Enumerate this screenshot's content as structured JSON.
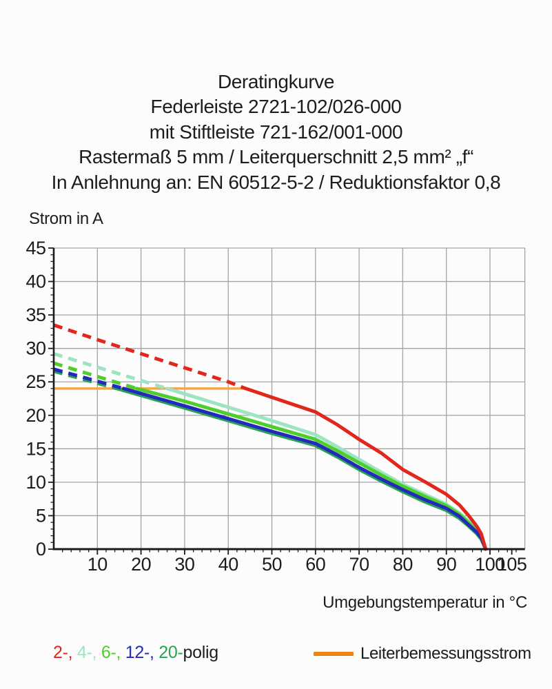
{
  "title": {
    "lines": [
      "Deratingkurve",
      "Federleiste 2721-102/026-000",
      "mit Stiftleiste 721-162/001-000",
      "Rastermaß 5 mm / Leiterquerschnitt 2,5 mm² „f“",
      "In Anlehnung an: EN 60512-5-2 / Reduktionsfaktor 0,8"
    ]
  },
  "chart_data": {
    "type": "line",
    "ylabel": "Strom in A",
    "xlabel": "Umgebungstemperatur in °C",
    "xlim": [
      0,
      108
    ],
    "ylim": [
      0,
      45
    ],
    "grid": "on",
    "x_major_ticks": [
      10,
      20,
      30,
      40,
      50,
      60,
      70,
      80,
      90,
      100,
      105
    ],
    "x_gridlines": [
      10,
      20,
      30,
      40,
      50,
      60,
      70,
      80,
      90,
      100
    ],
    "x_minor_step": 2,
    "y_major_ticks": [
      0,
      5,
      10,
      15,
      20,
      25,
      30,
      35,
      40,
      45
    ],
    "y_gridlines": [
      5,
      10,
      15,
      20,
      25,
      30,
      35,
      40,
      45
    ],
    "y_minor_step": 1,
    "grid_color": "#a3a3a3",
    "axis_color": "#1c1c1c",
    "line_style_note": "curves are dashed above the rated-current line (24 A) and solid below it",
    "rated_current_line": {
      "label": "Leiterbemessungsstrom",
      "value_a": 24,
      "temp_start": 0,
      "temp_end": 44,
      "color": "#f5a54a"
    },
    "series": [
      {
        "name": "2-polig",
        "poles": 2,
        "color": "#e1261d",
        "z": 5,
        "dash_until_temp": 44,
        "points": [
          [
            0,
            33.5
          ],
          [
            10,
            31.3
          ],
          [
            20,
            29.2
          ],
          [
            30,
            27.1
          ],
          [
            40,
            25.0
          ],
          [
            44,
            24.0
          ],
          [
            50,
            22.7
          ],
          [
            55,
            21.6
          ],
          [
            60,
            20.5
          ],
          [
            65,
            18.6
          ],
          [
            70,
            16.4
          ],
          [
            75,
            14.4
          ],
          [
            80,
            11.9
          ],
          [
            85,
            10.1
          ],
          [
            90,
            8.2
          ],
          [
            93,
            6.6
          ],
          [
            95,
            5.1
          ],
          [
            97,
            3.4
          ],
          [
            98,
            2.3
          ],
          [
            99,
            0
          ]
        ]
      },
      {
        "name": "4-polig",
        "poles": 4,
        "color": "#9de4c3",
        "z": 2,
        "dash_until_temp": 26,
        "points": [
          [
            0,
            29.2
          ],
          [
            10,
            27.2
          ],
          [
            20,
            25.2
          ],
          [
            26,
            24.0
          ],
          [
            30,
            23.2
          ],
          [
            40,
            21.2
          ],
          [
            50,
            19.2
          ],
          [
            60,
            17.1
          ],
          [
            65,
            15.3
          ],
          [
            70,
            13.4
          ],
          [
            75,
            11.5
          ],
          [
            80,
            9.7
          ],
          [
            85,
            8.2
          ],
          [
            90,
            6.7
          ],
          [
            93,
            5.4
          ],
          [
            95,
            4.2
          ],
          [
            97,
            2.8
          ],
          [
            98,
            1.9
          ],
          [
            99,
            0
          ]
        ]
      },
      {
        "name": "6-polig",
        "poles": 6,
        "color": "#4ecd2d",
        "z": 3,
        "dash_until_temp": 19,
        "points": [
          [
            0,
            27.8
          ],
          [
            10,
            25.8
          ],
          [
            19,
            24.0
          ],
          [
            30,
            22.1
          ],
          [
            40,
            20.2
          ],
          [
            50,
            18.3
          ],
          [
            60,
            16.4
          ],
          [
            65,
            14.7
          ],
          [
            70,
            12.9
          ],
          [
            75,
            11.1
          ],
          [
            80,
            9.4
          ],
          [
            85,
            7.9
          ],
          [
            90,
            6.5
          ],
          [
            93,
            5.2
          ],
          [
            95,
            4.0
          ],
          [
            97,
            2.7
          ],
          [
            98,
            1.8
          ],
          [
            99,
            0
          ]
        ]
      },
      {
        "name": "12-polig",
        "poles": 12,
        "color": "#2429bd",
        "z": 4,
        "dash_until_temp": 16,
        "points": [
          [
            0,
            26.9
          ],
          [
            10,
            25.1
          ],
          [
            16,
            24.0
          ],
          [
            30,
            21.4
          ],
          [
            40,
            19.5
          ],
          [
            50,
            17.6
          ],
          [
            60,
            15.8
          ],
          [
            65,
            14.1
          ],
          [
            70,
            12.2
          ],
          [
            75,
            10.5
          ],
          [
            80,
            8.9
          ],
          [
            85,
            7.4
          ],
          [
            90,
            6.1
          ],
          [
            93,
            4.9
          ],
          [
            95,
            3.7
          ],
          [
            97,
            2.5
          ],
          [
            98,
            1.7
          ],
          [
            99,
            0
          ]
        ]
      },
      {
        "name": "20-polig",
        "poles": 20,
        "color": "#27a350",
        "z": 1,
        "dash_until_temp": 15,
        "points": [
          [
            0,
            26.6
          ],
          [
            10,
            24.8
          ],
          [
            15,
            23.9
          ],
          [
            30,
            21.1
          ],
          [
            40,
            19.2
          ],
          [
            50,
            17.3
          ],
          [
            60,
            15.5
          ],
          [
            65,
            13.8
          ],
          [
            70,
            11.9
          ],
          [
            75,
            10.2
          ],
          [
            80,
            8.6
          ],
          [
            85,
            7.1
          ],
          [
            90,
            5.8
          ],
          [
            93,
            4.6
          ],
          [
            95,
            3.5
          ],
          [
            97,
            2.3
          ],
          [
            98,
            1.5
          ],
          [
            99,
            0
          ]
        ]
      }
    ]
  },
  "legend": {
    "poles": {
      "items": [
        {
          "label": "2-",
          "color": "#e1261d"
        },
        {
          "label": "4-",
          "color": "#9de4c3"
        },
        {
          "label": "6-",
          "color": "#4ecd2d"
        },
        {
          "label": "12-",
          "color": "#2429bd"
        },
        {
          "label": "20-",
          "color": "#27a350"
        }
      ],
      "suffix": "polig"
    },
    "rated_current": {
      "label": "Leiterbemessungsstrom",
      "swatch_color": "#ee8511"
    }
  }
}
